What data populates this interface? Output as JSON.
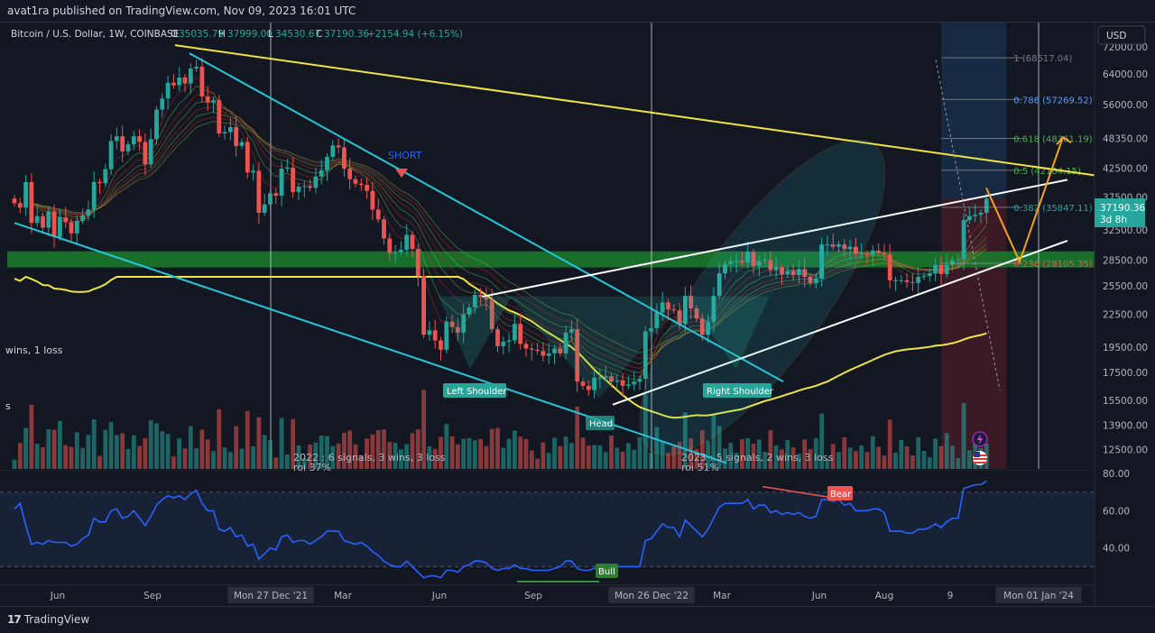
{
  "header": {
    "publisher": "avat1ra published on TradingView.com, Nov 09, 2023 16:01 UTC"
  },
  "footer": {
    "brand": "TradingView",
    "logo_mark": "17"
  },
  "legend": {
    "symbol": "Bitcoin / U.S. Dollar, 1W, COINBASE",
    "open_label": "O",
    "open": "35035.79",
    "high_label": "H",
    "high": "37999.00",
    "low_label": "L",
    "low": "34530.67",
    "close_label": "C",
    "close": "37190.36",
    "change": "+2154.94 (+6.15%)"
  },
  "currency_button": "USD",
  "price_tag": {
    "price": "37190.36",
    "countdown": "3d 8h"
  },
  "colors": {
    "background": "#131722",
    "up": "#26a69a",
    "down": "#ef5350",
    "trend_yellow": "#f0e442",
    "trend_cyan": "#26c6da",
    "wedge_white": "#ffffff",
    "support_band": "#1b7f2b",
    "rsi_line": "#2962ff",
    "projection": "#f7a21b"
  },
  "icons": [
    "bolt-icon",
    "us-flag-icon"
  ],
  "chart_data": {
    "type": "candlestick",
    "title": "Bitcoin / U.S. Dollar, 1W, COINBASE",
    "ylim": [
      11500,
      80000
    ],
    "yscale": "log",
    "y_ticks": [
      "72000.00",
      "64000.00",
      "56000.00",
      "48350.00",
      "42500.00",
      "37500.00",
      "32500.00",
      "28500.00",
      "25500.00",
      "22500.00",
      "19500.00",
      "17500.00",
      "15500.00",
      "13900.00",
      "12500.00"
    ],
    "x_ticks": [
      "Jun",
      "Sep",
      "Mon 27 Dec '21",
      "Mar",
      "Jun",
      "Sep",
      "Mon 26 Dec '22",
      "Mar",
      "Jun",
      "Aug",
      "9",
      "Mon 01 Jan '24"
    ],
    "series": [
      {
        "name": "BTCUSD",
        "values": [
          36500,
          35800,
          40000,
          33500,
          34500,
          32800,
          35200,
          31500,
          34300,
          33600,
          32000,
          33800,
          34600,
          35500,
          40000,
          39800,
          42300,
          47800,
          48800,
          45700,
          47100,
          48800,
          47600,
          43200,
          48200,
          54800,
          57500,
          61600,
          60900,
          63000,
          61400,
          65500,
          66000,
          58000,
          56500,
          57100,
          49400,
          49700,
          50800,
          46800,
          47600,
          41700,
          42000,
          35000,
          36300,
          38100,
          37700,
          42400,
          42600,
          38300,
          39200,
          39300,
          39000,
          41000,
          42100,
          44600,
          46900,
          46500,
          42400,
          40500,
          39700,
          39500,
          38500,
          35500,
          34000,
          31300,
          29400,
          29500,
          29800,
          31800,
          29900,
          26600,
          20600,
          21000,
          20100,
          19300,
          21800,
          21300,
          20800,
          22500,
          23200,
          24500,
          24300,
          24000,
          21100,
          19600,
          20000,
          20100,
          21600,
          19800,
          19400,
          19300,
          19200,
          18800,
          19000,
          19400,
          19000,
          20800,
          21100,
          16800,
          16500,
          16200,
          17100,
          17100,
          17200,
          16800,
          16900,
          16500,
          16600,
          16800,
          17000,
          20900,
          21200,
          22700,
          23700,
          23000,
          22900,
          21600,
          24400,
          23100,
          22100,
          20600,
          21800,
          24400,
          26900,
          28000,
          28300,
          28400,
          28200,
          29500,
          27800,
          28400,
          28500,
          27300,
          27600,
          26800,
          27200,
          26700,
          27400,
          26500,
          25800,
          26300,
          30500,
          30500,
          30200,
          30500,
          29900,
          30200,
          29300,
          29300,
          29100,
          29700,
          29400,
          29200,
          26100,
          26100,
          26100,
          25900,
          25800,
          26500,
          26600,
          26900,
          27900,
          26800,
          27900,
          28500,
          28600,
          33900,
          34500,
          34700,
          35000,
          37190
        ]
      },
      {
        "name": "RSI",
        "values": [
          61,
          64,
          52,
          42,
          43,
          42,
          44,
          43,
          43,
          43,
          41,
          42,
          45,
          47,
          56,
          54,
          54,
          60,
          61,
          56,
          57,
          60,
          56,
          52,
          57,
          63,
          66,
          68,
          67,
          68,
          66,
          69,
          71,
          64,
          60,
          60,
          50,
          49,
          51,
          46,
          47,
          41,
          42,
          34,
          37,
          40,
          39,
          46,
          47,
          43,
          44,
          44,
          42,
          44,
          46,
          49,
          49,
          49,
          44,
          43,
          42,
          43,
          41,
          38,
          36,
          33,
          31,
          30,
          30,
          33,
          30,
          27,
          24,
          25,
          25,
          24,
          28,
          28,
          27,
          30,
          31,
          33,
          33,
          32,
          29,
          28,
          29,
          29,
          31,
          29,
          29,
          28,
          28,
          28,
          28,
          29,
          30,
          33,
          33,
          29,
          28,
          28,
          29,
          29,
          30,
          29,
          30,
          30,
          30,
          30,
          30,
          44,
          45,
          49,
          53,
          51,
          51,
          46,
          55,
          52,
          49,
          46,
          50,
          56,
          62,
          64,
          64,
          64,
          64,
          66,
          61,
          63,
          63,
          59,
          60,
          58,
          59,
          58,
          59,
          57,
          56,
          57,
          66,
          66,
          65,
          66,
          63,
          64,
          60,
          60,
          60,
          61,
          61,
          59,
          49,
          49,
          49,
          48,
          48,
          50,
          50,
          51,
          53,
          51,
          54,
          56,
          56,
          72,
          73,
          74,
          74,
          76
        ]
      }
    ],
    "volume_note": "volume histogram shown beneath price bars",
    "fibonacci": [
      {
        "level": "1",
        "price": "68617.04",
        "label": "1 (68617.04)"
      },
      {
        "level": "0.786",
        "price": "57269.52",
        "label": "0.786 (57269.52)"
      },
      {
        "level": "0.618",
        "price": "48361.19",
        "label": "0.618 (48361.19)"
      },
      {
        "level": "0.5",
        "price": "42104.15",
        "label": "0.5 (42104.15)"
      },
      {
        "level": "0.382",
        "price": "35847.11",
        "label": "0.382 (35847.11)"
      },
      {
        "level": "0.236",
        "price": "28105.35",
        "label": "0.236 (28105.35)"
      }
    ],
    "annotations": {
      "short": "SHORT",
      "left_shoulder": "Left Shoulder",
      "head": "Head",
      "right_shoulder": "Right Shoulder",
      "stats_left": "wins, 1 loss",
      "stats_left2": "s",
      "stats_2022": "2022 : 6 signals, 3 wins, 3 loss",
      "roi_2022": "roi 37%",
      "stats_2023": "2023 : 5 signals, 2 wins, 3 loss",
      "roi_2023": "roi 51%"
    },
    "rsi": {
      "y_ticks": [
        "80.00",
        "60.00",
        "40.00"
      ],
      "ylim": [
        20,
        82
      ],
      "bull_label": "Bull",
      "bear_label": "Bear"
    }
  }
}
